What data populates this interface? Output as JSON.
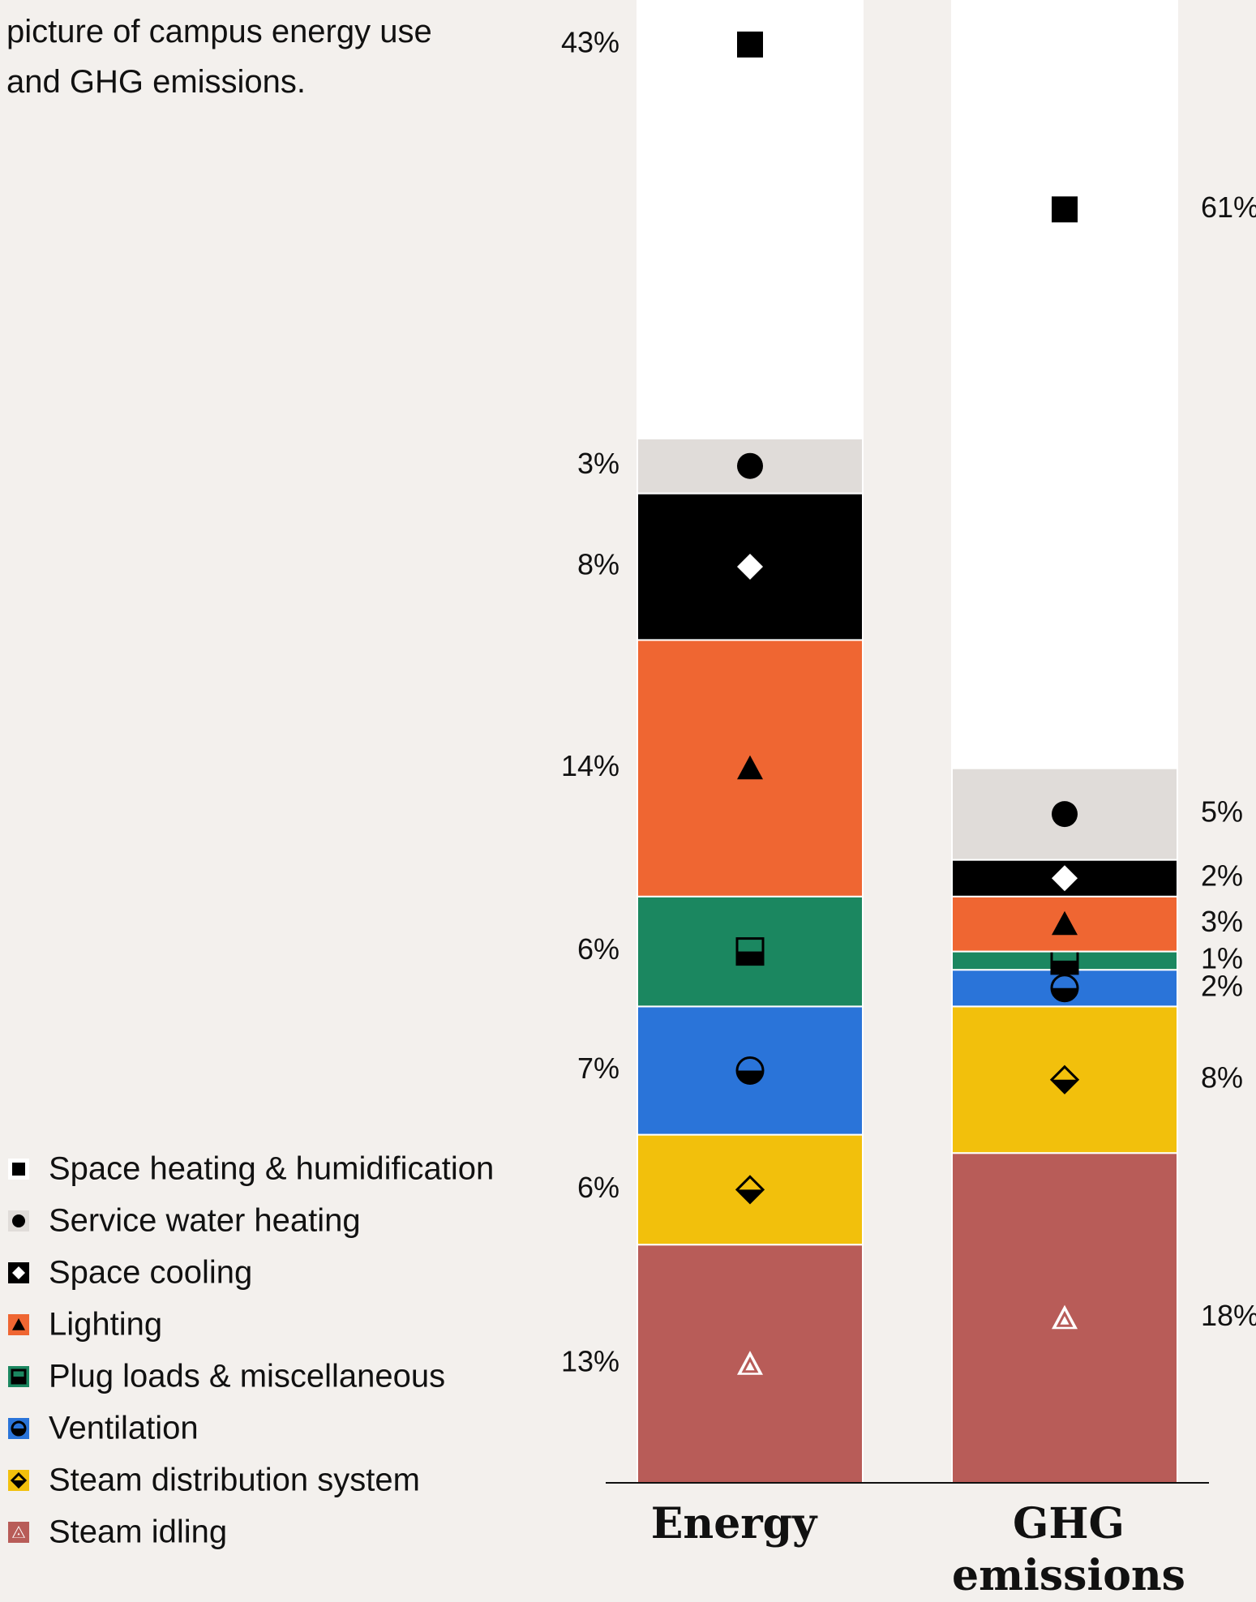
{
  "intro": "picture of campus energy use and GHG emissions.",
  "chart_data": {
    "type": "bar",
    "stacked": true,
    "categories": [
      "Energy",
      "GHG emissions"
    ],
    "series": [
      {
        "name": "Space heating & humidification",
        "color": "#ffffff",
        "values": [
          43,
          61
        ],
        "value_labels": [
          "43%",
          "61%"
        ]
      },
      {
        "name": "Service water heating",
        "color": "#e0dcd9",
        "values": [
          3,
          5
        ],
        "value_labels": [
          "3%",
          "5%"
        ]
      },
      {
        "name": "Space cooling",
        "color": "#000000",
        "values": [
          8,
          2
        ],
        "value_labels": [
          "8%",
          "2%"
        ]
      },
      {
        "name": "Lighting",
        "color": "#ef6632",
        "values": [
          14,
          3
        ],
        "value_labels": [
          "14%",
          "3%"
        ]
      },
      {
        "name": "Plug loads & miscellaneous",
        "color": "#1b8760",
        "values": [
          6,
          1
        ],
        "value_labels": [
          "6%",
          "1%"
        ]
      },
      {
        "name": "Ventilation",
        "color": "#2a74d9",
        "values": [
          7,
          2
        ],
        "value_labels": [
          "7%",
          "2%"
        ]
      },
      {
        "name": "Steam distribution system",
        "color": "#f2c00c",
        "values": [
          6,
          8
        ],
        "value_labels": [
          "6%",
          "8%"
        ]
      },
      {
        "name": "Steam idling",
        "color": "#b85c58",
        "values": [
          13,
          18
        ],
        "value_labels": [
          "13%",
          "18%"
        ]
      }
    ]
  }
}
